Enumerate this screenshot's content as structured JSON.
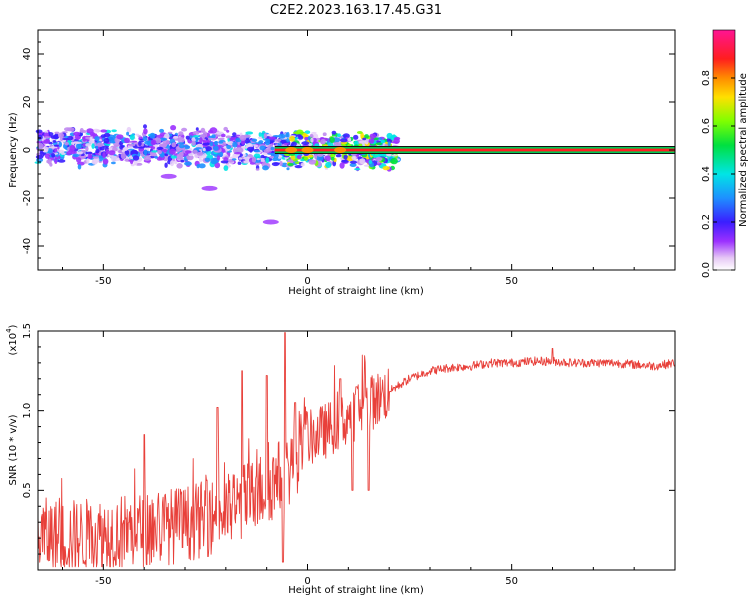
{
  "title": "C2E2.2023.163.17.45.G31",
  "chart_data": [
    {
      "type": "heatmap",
      "xlabel": "Height of straight line (km)",
      "ylabel": "Frequency (Hz)",
      "xlim": [
        -66,
        90
      ],
      "ylim": [
        -50,
        50
      ],
      "x_ticks": [
        -50,
        0,
        50
      ],
      "y_ticks": [
        -40,
        -20,
        0,
        20,
        40
      ],
      "colorbar": {
        "label": "Normalized spectral amplitude",
        "range": [
          0,
          1
        ],
        "ticks": [
          "0.0",
          "0.2",
          "0.4",
          "0.6",
          "0.8"
        ],
        "tick_values": [
          0.0,
          0.2,
          0.4,
          0.6,
          0.8
        ],
        "colormap": "rainbow (white-purple-blue-cyan-green-yellow-red-magenta)"
      },
      "carrier_line": {
        "frequency_hz": 0,
        "from_x": -8,
        "to_x": 90
      },
      "scatter_band": {
        "from_x": -66,
        "to_x": 22,
        "center_hz": 0,
        "half_width_hz": 6
      },
      "side_blobs": [
        {
          "x": -34,
          "y": -11
        },
        {
          "x": -24,
          "y": -16
        },
        {
          "x": -9,
          "y": -30
        }
      ]
    },
    {
      "type": "line",
      "xlabel": "Height of straight line (km)",
      "ylabel": "SNR (10 * v/v)",
      "y_scale_label": "(x10",
      "y_scale_exponent": "4",
      "xlim": [
        -66,
        90
      ],
      "ylim": [
        0,
        1.5
      ],
      "x_ticks": [
        -50,
        0,
        50
      ],
      "y_ticks": [
        0.5,
        1.0,
        1.5
      ],
      "y_tick_labels": [
        "0.5",
        "1.0",
        "1.5"
      ],
      "series": [
        {
          "color": "#e8403a",
          "x": [
            -66,
            -60,
            -55,
            -50,
            -45,
            -40,
            -35,
            -30,
            -25,
            -20,
            -15,
            -10,
            -6,
            -5,
            -3,
            0,
            5,
            10,
            15,
            20,
            25,
            30,
            35,
            40,
            45,
            50,
            55,
            60,
            65,
            70,
            75,
            80,
            85,
            90
          ],
          "y": [
            0.22,
            0.2,
            0.21,
            0.22,
            0.24,
            0.25,
            0.27,
            0.29,
            0.32,
            0.36,
            0.44,
            0.52,
            0.6,
            0.62,
            0.7,
            0.82,
            0.88,
            0.96,
            1.04,
            1.12,
            1.2,
            1.25,
            1.27,
            1.28,
            1.3,
            1.3,
            1.31,
            1.31,
            1.3,
            1.3,
            1.3,
            1.29,
            1.28,
            1.3
          ],
          "spikes": [
            {
              "x": -40,
              "y": 0.85
            },
            {
              "x": -22,
              "y": 1.02
            },
            {
              "x": -16,
              "y": 1.25
            },
            {
              "x": -10,
              "y": 1.22
            },
            {
              "x": -5.5,
              "y": 1.49
            },
            {
              "x": -3,
              "y": 1.05
            },
            {
              "x": 8,
              "y": 1.2
            },
            {
              "x": 12,
              "y": 1.15
            },
            {
              "x": 60,
              "y": 1.39
            }
          ],
          "dips": [
            {
              "x": -6,
              "y": 0.05
            },
            {
              "x": 11,
              "y": 0.5
            },
            {
              "x": 15,
              "y": 0.5
            }
          ]
        }
      ]
    }
  ]
}
